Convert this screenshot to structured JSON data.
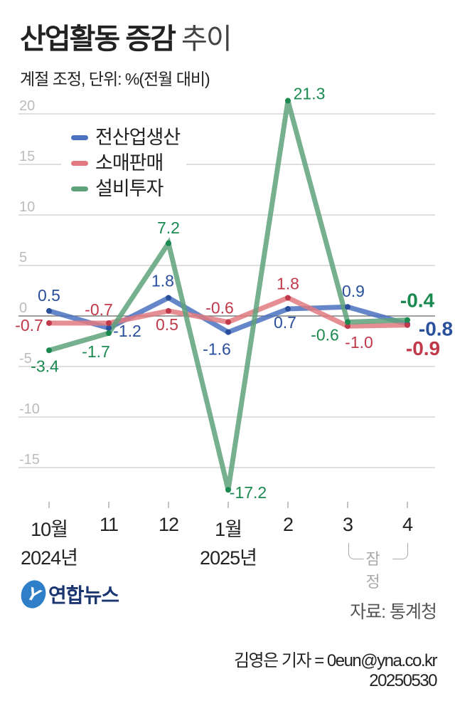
{
  "header": {
    "title_bold": "산업활동 증감",
    "title_light": "추이",
    "subtitle": "계절 조정, 단위: %(전월 대비)"
  },
  "chart_data": {
    "type": "line",
    "title": "산업활동 증감 추이",
    "subtitle": "계절 조정, 단위: %(전월 대비)",
    "categories": [
      "10월",
      "11",
      "12",
      "1월",
      "2",
      "3",
      "4"
    ],
    "category_years": {
      "0": "2024년",
      "3": "2025년"
    },
    "preliminary_label": "잠정",
    "preliminary_categories": [
      "3",
      "4"
    ],
    "y_ticks": [
      20,
      15,
      10,
      5,
      0,
      -5,
      -10,
      -15
    ],
    "ylim": [
      -20,
      22
    ],
    "grid": true,
    "legend_position": "top-left",
    "series": [
      {
        "name": "전산업생산",
        "color": "#4a72c0",
        "label_color": "#2a4f9c",
        "values": [
          0.5,
          -1.2,
          1.8,
          -1.6,
          0.7,
          0.9,
          -0.8
        ]
      },
      {
        "name": "소매판매",
        "color": "#e07a80",
        "label_color": "#c0394a",
        "values": [
          -0.7,
          -0.7,
          0.5,
          -0.6,
          1.8,
          -1.0,
          -0.9
        ]
      },
      {
        "name": "설비투자",
        "color": "#5fa27a",
        "label_color": "#1a8a50",
        "values": [
          -3.4,
          -1.7,
          7.2,
          -17.2,
          21.3,
          -0.6,
          -0.4
        ]
      }
    ]
  },
  "footer": {
    "logo_text": "연합뉴스",
    "source": "자료: 통계청",
    "byline": "김영은 기자 = 0eun@yna.co.kr",
    "date": "20250530"
  }
}
